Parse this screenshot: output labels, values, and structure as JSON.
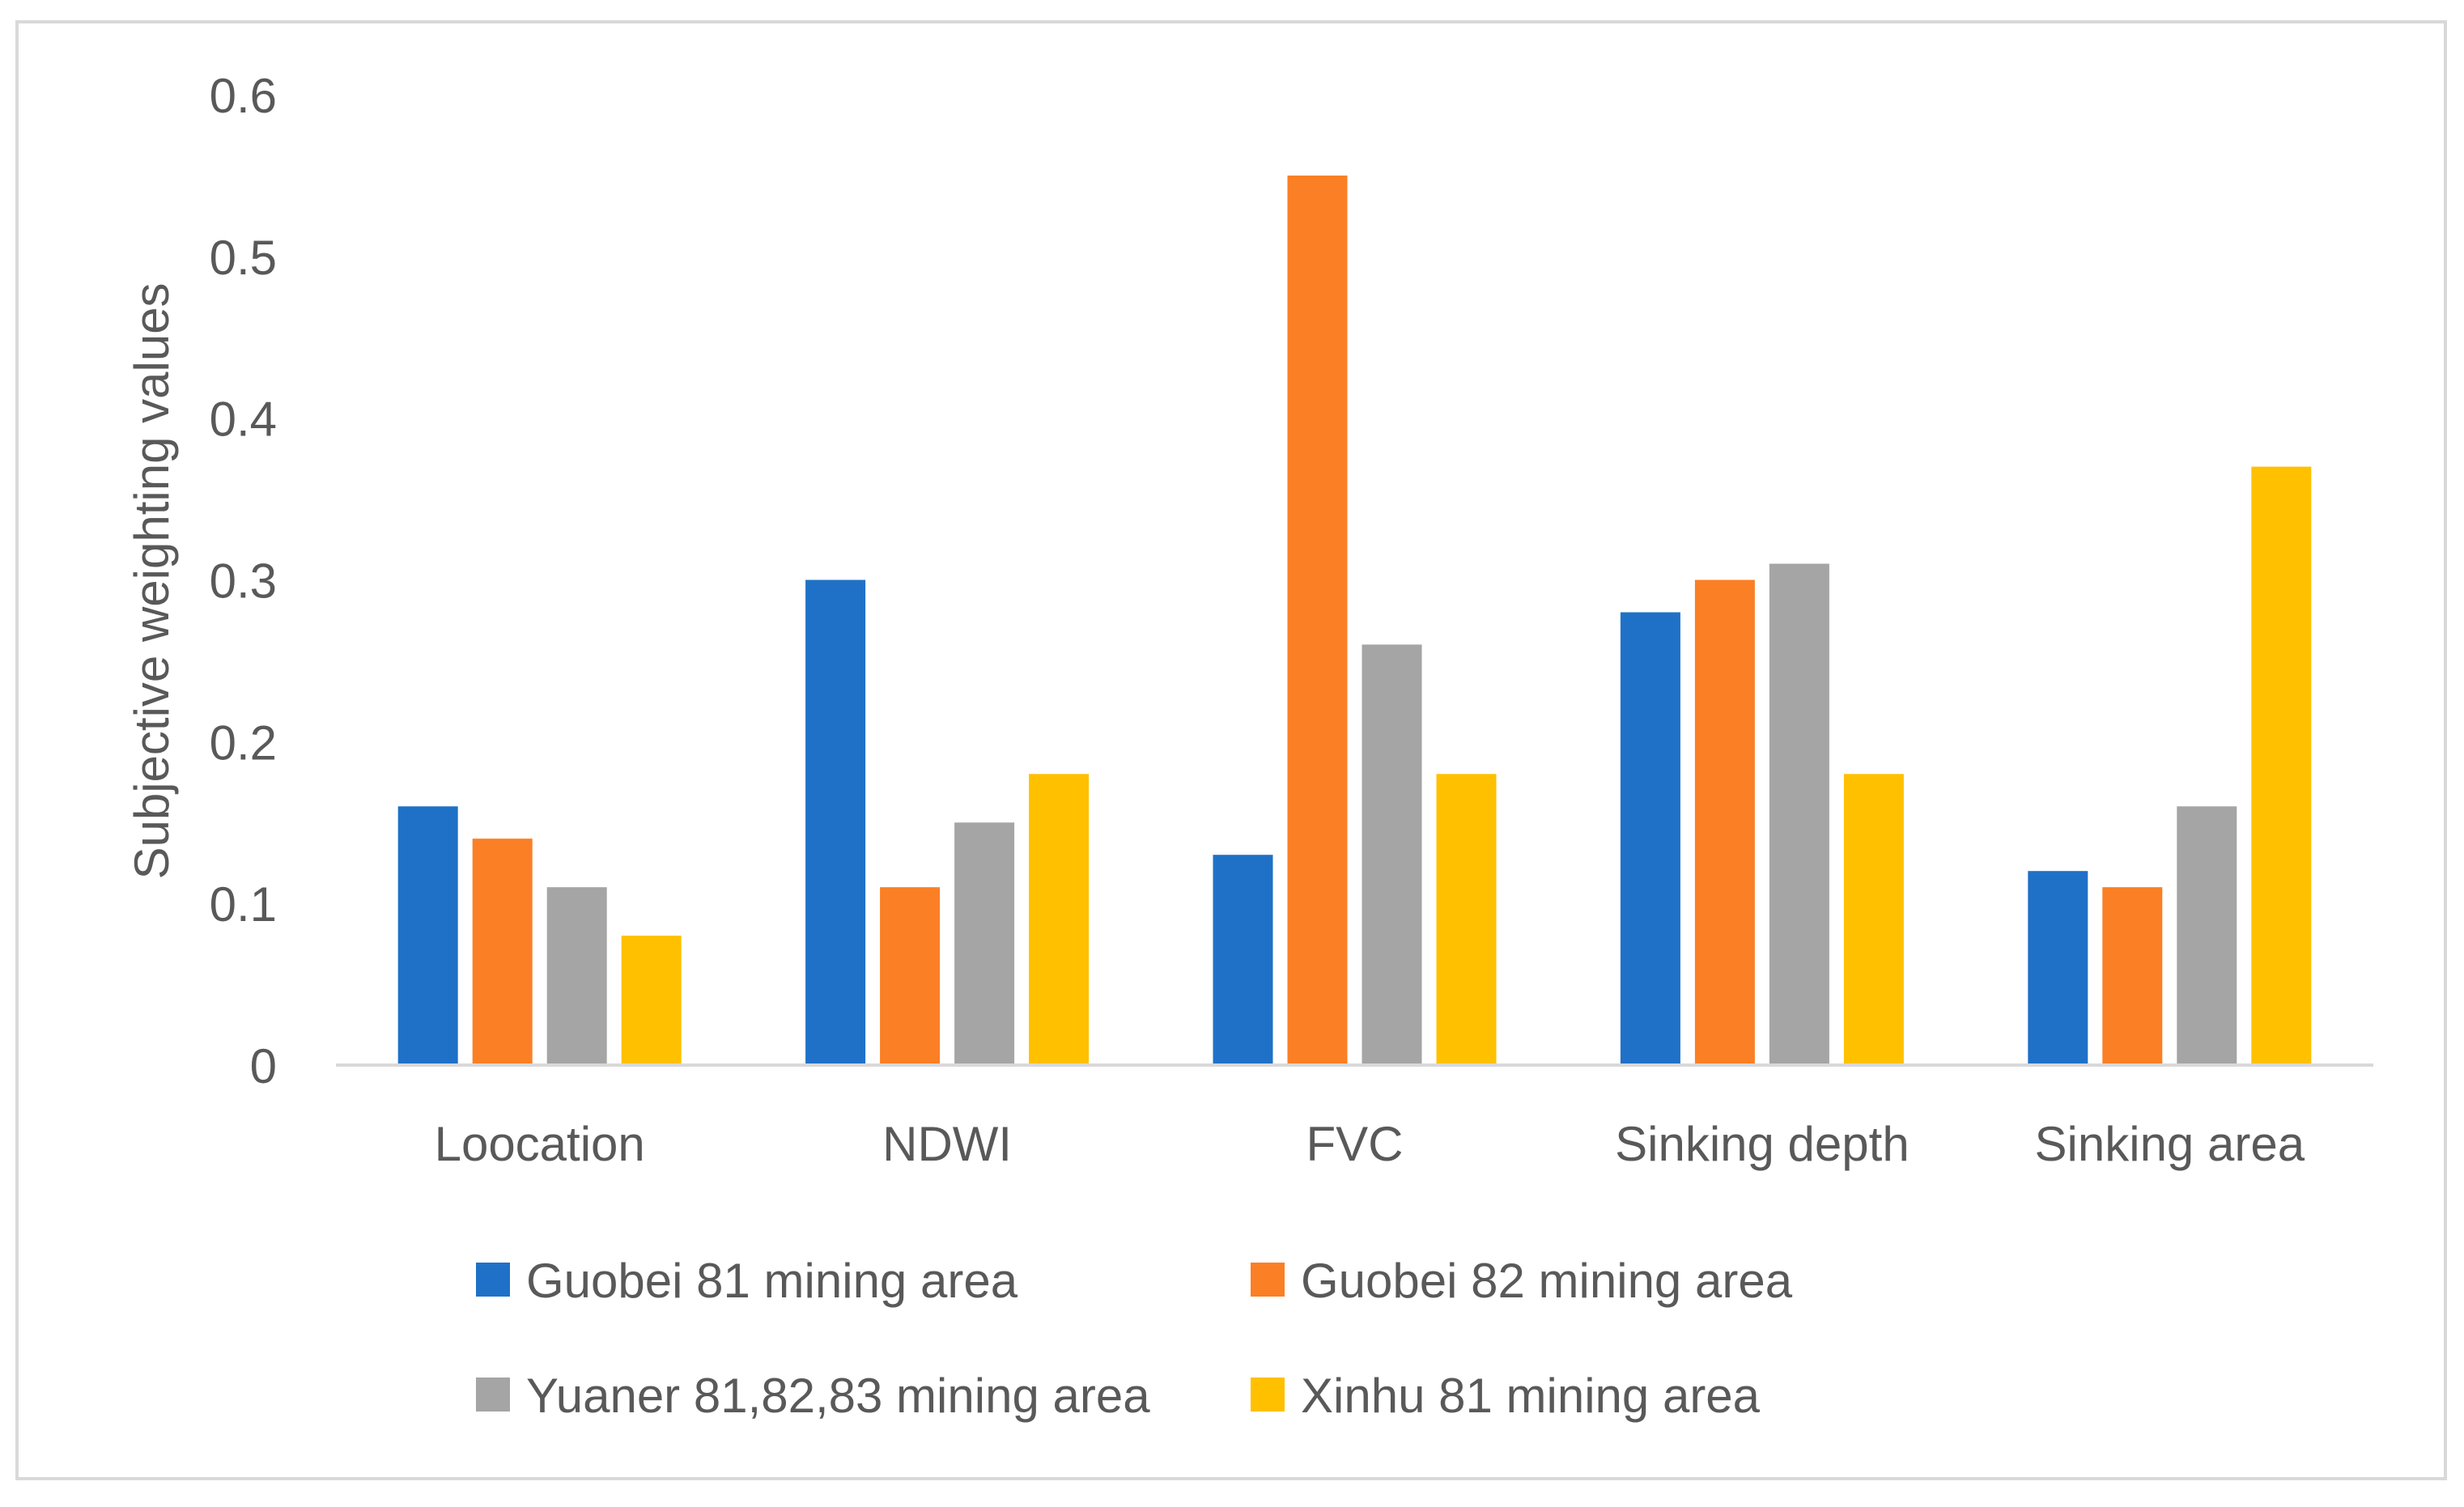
{
  "chart_data": {
    "type": "bar",
    "title": "",
    "xlabel": "",
    "ylabel": "Subjective weighting values",
    "ylim": [
      0,
      0.6
    ],
    "yticks": [
      "0",
      "0.1",
      "0.2",
      "0.3",
      "0.4",
      "0.5",
      "0.6"
    ],
    "ytick_values": [
      0,
      0.1,
      0.2,
      0.3,
      0.4,
      0.5,
      0.6
    ],
    "grid": false,
    "legend_position": "bottom",
    "categories": [
      "Loocation",
      "NDWI",
      "FVC",
      "Sinking depth",
      "Sinking area"
    ],
    "series": [
      {
        "name": "Guobei 81 mining area",
        "color": "#1F71C7",
        "values": [
          0.16,
          0.3,
          0.13,
          0.28,
          0.12
        ]
      },
      {
        "name": "Guobei 82 mining area",
        "color": "#FB7F25",
        "values": [
          0.14,
          0.11,
          0.55,
          0.3,
          0.11
        ]
      },
      {
        "name": "Yuaner 81,82,83 mining area",
        "color": "#A5A5A5",
        "values": [
          0.11,
          0.15,
          0.26,
          0.31,
          0.16
        ]
      },
      {
        "name": "Xinhu 81 mining area",
        "color": "#FFC000",
        "values": [
          0.08,
          0.18,
          0.18,
          0.18,
          0.37
        ]
      }
    ]
  }
}
